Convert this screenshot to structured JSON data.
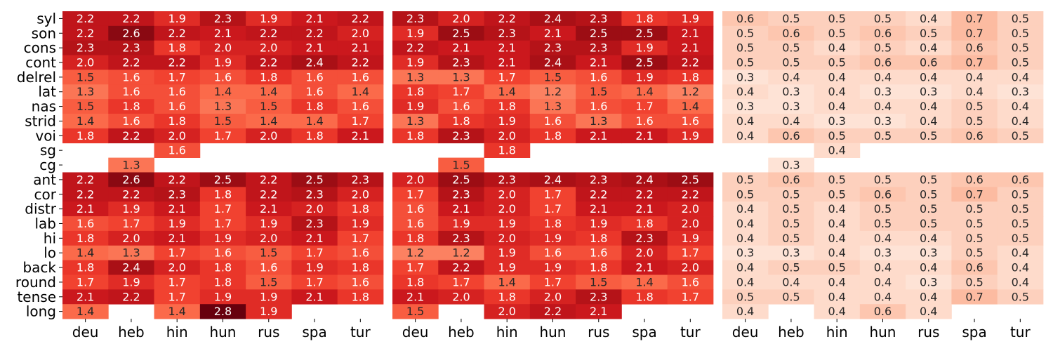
{
  "chart_data": {
    "type": "heatmap",
    "columns": [
      "deu",
      "heb",
      "hin",
      "hun",
      "rus",
      "spa",
      "tur"
    ],
    "rows": [
      "syl",
      "son",
      "cons",
      "cont",
      "delrel",
      "lat",
      "nas",
      "strid",
      "voi",
      "sg",
      "cg",
      "ant",
      "cor",
      "distr",
      "lab",
      "hi",
      "lo",
      "back",
      "round",
      "tense",
      "long"
    ],
    "colormap": "Reds",
    "color_range": [
      0,
      2.8
    ],
    "panels": [
      {
        "values": [
          [
            2.2,
            2.2,
            1.9,
            2.3,
            1.9,
            2.1,
            2.2
          ],
          [
            2.2,
            2.6,
            2.2,
            2.1,
            2.2,
            2.2,
            2.0
          ],
          [
            2.3,
            2.3,
            1.8,
            2.0,
            2.0,
            2.1,
            2.1
          ],
          [
            2.0,
            2.2,
            2.2,
            1.9,
            2.2,
            2.4,
            2.2
          ],
          [
            1.5,
            1.6,
            1.7,
            1.6,
            1.8,
            1.6,
            1.6
          ],
          [
            1.3,
            1.6,
            1.6,
            1.4,
            1.4,
            1.6,
            1.4
          ],
          [
            1.5,
            1.8,
            1.6,
            1.3,
            1.5,
            1.8,
            1.6
          ],
          [
            1.4,
            1.6,
            1.8,
            1.5,
            1.4,
            1.4,
            1.7
          ],
          [
            1.8,
            2.2,
            2.0,
            1.7,
            2.0,
            1.8,
            2.1
          ],
          [
            null,
            null,
            1.6,
            null,
            null,
            null,
            null
          ],
          [
            null,
            1.3,
            null,
            null,
            null,
            null,
            null
          ],
          [
            2.2,
            2.6,
            2.2,
            2.5,
            2.2,
            2.5,
            2.3
          ],
          [
            2.2,
            2.2,
            2.3,
            1.8,
            2.2,
            2.3,
            2.0
          ],
          [
            2.1,
            1.9,
            2.1,
            1.7,
            2.1,
            2.0,
            1.8
          ],
          [
            1.6,
            1.7,
            1.9,
            1.7,
            1.9,
            2.3,
            1.9
          ],
          [
            1.8,
            2.0,
            2.1,
            1.9,
            2.0,
            2.1,
            1.7
          ],
          [
            1.4,
            1.3,
            1.7,
            1.6,
            1.5,
            1.7,
            1.6
          ],
          [
            1.8,
            2.4,
            2.0,
            1.8,
            1.6,
            1.9,
            1.8
          ],
          [
            1.7,
            1.9,
            1.7,
            1.8,
            1.5,
            1.7,
            1.6
          ],
          [
            2.1,
            2.2,
            1.7,
            1.9,
            1.9,
            2.1,
            1.8
          ],
          [
            1.4,
            null,
            1.4,
            2.8,
            1.9,
            null,
            null
          ]
        ]
      },
      {
        "values": [
          [
            2.3,
            2.0,
            2.2,
            2.4,
            2.3,
            1.8,
            1.9
          ],
          [
            1.9,
            2.5,
            2.3,
            2.1,
            2.5,
            2.5,
            2.1
          ],
          [
            2.2,
            2.1,
            2.1,
            2.3,
            2.3,
            1.9,
            2.1
          ],
          [
            1.9,
            2.3,
            2.1,
            2.4,
            2.1,
            2.5,
            2.2
          ],
          [
            1.3,
            1.3,
            1.7,
            1.5,
            1.6,
            1.9,
            1.8
          ],
          [
            1.8,
            1.7,
            1.4,
            1.2,
            1.5,
            1.4,
            1.2
          ],
          [
            1.9,
            1.6,
            1.8,
            1.3,
            1.6,
            1.7,
            1.4
          ],
          [
            1.3,
            1.8,
            1.9,
            1.6,
            1.3,
            1.6,
            1.6
          ],
          [
            1.8,
            2.3,
            2.0,
            1.8,
            2.1,
            2.1,
            1.9
          ],
          [
            null,
            null,
            1.8,
            null,
            null,
            null,
            null
          ],
          [
            null,
            1.5,
            null,
            null,
            null,
            null,
            null
          ],
          [
            2.0,
            2.5,
            2.3,
            2.4,
            2.3,
            2.4,
            2.5
          ],
          [
            1.7,
            2.3,
            2.0,
            1.7,
            2.2,
            2.2,
            2.2
          ],
          [
            1.6,
            2.1,
            2.0,
            1.7,
            2.1,
            2.1,
            2.0
          ],
          [
            1.6,
            1.9,
            1.9,
            1.8,
            1.9,
            1.8,
            2.0
          ],
          [
            1.8,
            2.3,
            2.0,
            1.9,
            1.8,
            2.3,
            1.9
          ],
          [
            1.2,
            1.2,
            1.9,
            1.6,
            1.6,
            2.0,
            1.7
          ],
          [
            1.7,
            2.2,
            1.9,
            1.9,
            1.8,
            2.1,
            2.0
          ],
          [
            1.8,
            1.7,
            1.4,
            1.7,
            1.5,
            1.4,
            1.6
          ],
          [
            2.1,
            2.0,
            1.8,
            2.0,
            2.3,
            1.8,
            1.7
          ],
          [
            1.5,
            null,
            2.0,
            2.2,
            2.1,
            null,
            null
          ]
        ]
      },
      {
        "values": [
          [
            0.6,
            0.5,
            0.5,
            0.5,
            0.4,
            0.7,
            0.5
          ],
          [
            0.5,
            0.6,
            0.5,
            0.6,
            0.5,
            0.7,
            0.5
          ],
          [
            0.5,
            0.5,
            0.4,
            0.5,
            0.4,
            0.6,
            0.5
          ],
          [
            0.5,
            0.5,
            0.5,
            0.6,
            0.6,
            0.7,
            0.5
          ],
          [
            0.3,
            0.4,
            0.4,
            0.4,
            0.4,
            0.4,
            0.4
          ],
          [
            0.4,
            0.3,
            0.4,
            0.3,
            0.3,
            0.4,
            0.3
          ],
          [
            0.3,
            0.3,
            0.4,
            0.4,
            0.4,
            0.5,
            0.4
          ],
          [
            0.4,
            0.4,
            0.3,
            0.3,
            0.4,
            0.5,
            0.4
          ],
          [
            0.4,
            0.6,
            0.5,
            0.5,
            0.5,
            0.6,
            0.5
          ],
          [
            null,
            null,
            0.4,
            null,
            null,
            null,
            null
          ],
          [
            null,
            0.3,
            null,
            null,
            null,
            null,
            null
          ],
          [
            0.5,
            0.6,
            0.5,
            0.5,
            0.5,
            0.6,
            0.6
          ],
          [
            0.5,
            0.5,
            0.5,
            0.6,
            0.5,
            0.7,
            0.5
          ],
          [
            0.4,
            0.5,
            0.4,
            0.5,
            0.5,
            0.5,
            0.5
          ],
          [
            0.4,
            0.5,
            0.4,
            0.5,
            0.5,
            0.5,
            0.5
          ],
          [
            0.4,
            0.5,
            0.4,
            0.4,
            0.4,
            0.5,
            0.5
          ],
          [
            0.3,
            0.3,
            0.4,
            0.3,
            0.3,
            0.5,
            0.4
          ],
          [
            0.4,
            0.5,
            0.5,
            0.4,
            0.4,
            0.6,
            0.4
          ],
          [
            0.4,
            0.4,
            0.4,
            0.4,
            0.3,
            0.5,
            0.4
          ],
          [
            0.5,
            0.5,
            0.4,
            0.4,
            0.4,
            0.7,
            0.5
          ],
          [
            0.4,
            null,
            0.4,
            0.6,
            0.4,
            null,
            null
          ]
        ]
      }
    ]
  }
}
